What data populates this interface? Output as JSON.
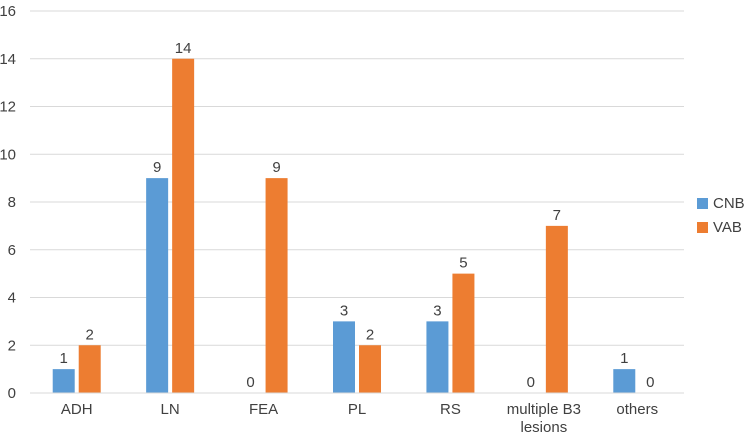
{
  "chart_data": {
    "type": "bar",
    "title": "",
    "xlabel": "",
    "ylabel": "",
    "ylim": [
      0,
      16
    ],
    "yticks": [
      0,
      2,
      4,
      6,
      8,
      10,
      12,
      14,
      16
    ],
    "grid": true,
    "legend_position": "right",
    "categories": [
      "ADH",
      "LN",
      "FEA",
      "PL",
      "RS",
      "multiple B3 lesions",
      "others"
    ],
    "series": [
      {
        "name": "CNB",
        "color": "#5B9BD5",
        "values": [
          1,
          9,
          0,
          3,
          3,
          0,
          1
        ]
      },
      {
        "name": "VAB",
        "color": "#ED7D31",
        "values": [
          2,
          14,
          9,
          2,
          5,
          7,
          0
        ]
      }
    ]
  }
}
